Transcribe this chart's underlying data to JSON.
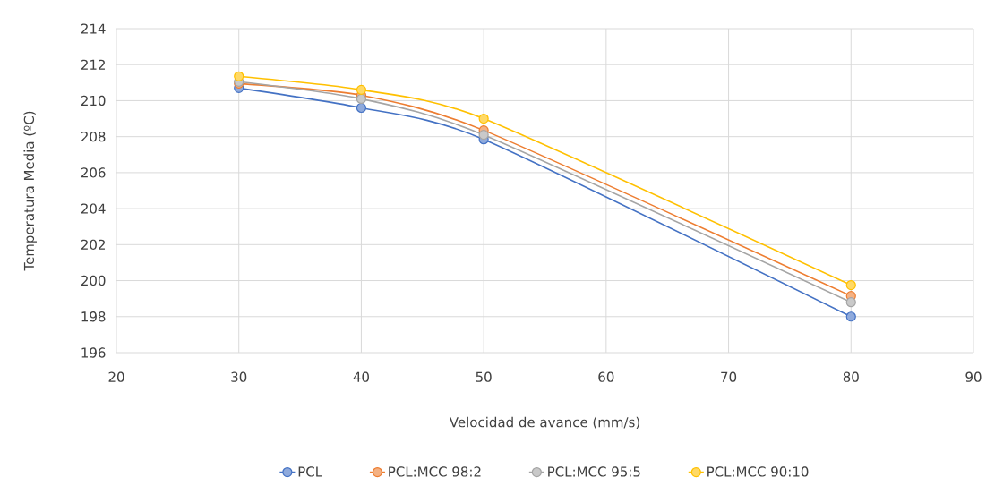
{
  "chart_data": {
    "type": "line",
    "xlabel": "Velocidad de avance (mm/s)",
    "ylabel": "Temperatura Media (ºC)",
    "x": [
      30,
      40,
      50,
      80
    ],
    "series": [
      {
        "name": "PCL",
        "color": "#4472c4",
        "values": [
          210.7,
          209.6,
          207.85,
          198.0
        ]
      },
      {
        "name": "PCL:MCC 98:2",
        "color": "#ed7d31",
        "values": [
          210.95,
          210.3,
          208.35,
          199.15
        ]
      },
      {
        "name": "PCL:MCC 95:5",
        "color": "#a5a5a5",
        "values": [
          211.05,
          210.1,
          208.1,
          198.8
        ]
      },
      {
        "name": "PCL:MCC 90:10",
        "color": "#ffc000",
        "values": [
          211.35,
          210.6,
          209.0,
          199.75
        ]
      }
    ],
    "xlim": [
      20,
      90
    ],
    "xticks": [
      20,
      30,
      40,
      50,
      60,
      70,
      80,
      90
    ],
    "ylim": [
      196,
      214
    ],
    "yticks": [
      196,
      198,
      200,
      202,
      204,
      206,
      208,
      210,
      212,
      214
    ],
    "grid": true,
    "legend": "bottom",
    "marker": "circle",
    "line_style": "solid"
  }
}
